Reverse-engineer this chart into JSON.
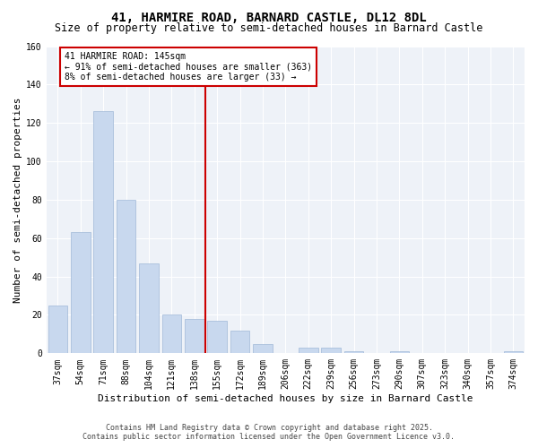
{
  "title": "41, HARMIRE ROAD, BARNARD CASTLE, DL12 8DL",
  "subtitle": "Size of property relative to semi-detached houses in Barnard Castle",
  "xlabel": "Distribution of semi-detached houses by size in Barnard Castle",
  "ylabel": "Number of semi-detached properties",
  "categories": [
    "37sqm",
    "54sqm",
    "71sqm",
    "88sqm",
    "104sqm",
    "121sqm",
    "138sqm",
    "155sqm",
    "172sqm",
    "189sqm",
    "206sqm",
    "222sqm",
    "239sqm",
    "256sqm",
    "273sqm",
    "290sqm",
    "307sqm",
    "323sqm",
    "340sqm",
    "357sqm",
    "374sqm"
  ],
  "values": [
    25,
    63,
    126,
    80,
    47,
    20,
    18,
    17,
    12,
    5,
    0,
    3,
    3,
    1,
    0,
    1,
    0,
    0,
    0,
    0,
    1
  ],
  "bar_color": "#c8d8ee",
  "bar_edge_color": "#a0b8d8",
  "vline_color": "#cc0000",
  "annotation_title": "41 HARMIRE ROAD: 145sqm",
  "annotation_line1": "← 91% of semi-detached houses are smaller (363)",
  "annotation_line2": "8% of semi-detached houses are larger (33) →",
  "annotation_box_color": "#ffffff",
  "annotation_box_edge": "#cc0000",
  "ylim": [
    0,
    160
  ],
  "yticks": [
    0,
    20,
    40,
    60,
    80,
    100,
    120,
    140,
    160
  ],
  "footer_line1": "Contains HM Land Registry data © Crown copyright and database right 2025.",
  "footer_line2": "Contains public sector information licensed under the Open Government Licence v3.0.",
  "bg_color": "#ffffff",
  "plot_bg_color": "#eef2f8",
  "title_fontsize": 10,
  "subtitle_fontsize": 8.5,
  "axis_label_fontsize": 8,
  "tick_fontsize": 7
}
